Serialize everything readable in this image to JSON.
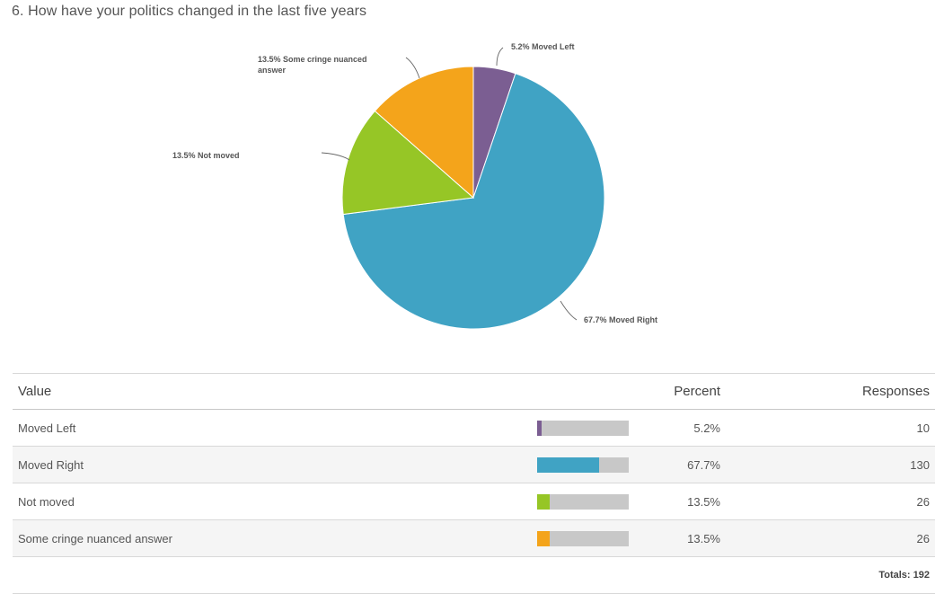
{
  "question": {
    "title": "6. How have your politics changed in the last five years"
  },
  "chart_data": {
    "type": "pie",
    "title": "6. How have your politics changed in the last five years",
    "slices": [
      {
        "label": "Moved Left",
        "percent": 5.2,
        "responses": 10,
        "color": "#7b5e92",
        "chart_label": "5.2% Moved Left"
      },
      {
        "label": "Moved Right",
        "percent": 67.7,
        "responses": 130,
        "color": "#40a3c4",
        "chart_label": "67.7% Moved Right"
      },
      {
        "label": "Not moved",
        "percent": 13.5,
        "responses": 26,
        "color": "#96c626",
        "chart_label": "13.5% Not moved"
      },
      {
        "label": "Some cringe nuanced answer",
        "percent": 13.5,
        "responses": 26,
        "color": "#f4a41b",
        "chart_label_lines": [
          "13.5% Some cringe nuanced",
          "answer"
        ]
      }
    ],
    "start": "12 o'clock",
    "direction": "clockwise"
  },
  "table": {
    "headers": {
      "value": "Value",
      "percent": "Percent",
      "responses": "Responses"
    },
    "rows": [
      {
        "value": "Moved Left",
        "percent": "5.2%",
        "responses": "10"
      },
      {
        "value": "Moved Right",
        "percent": "67.7%",
        "responses": "130"
      },
      {
        "value": "Not moved",
        "percent": "13.5%",
        "responses": "26"
      },
      {
        "value": "Some cringe nuanced answer",
        "percent": "13.5%",
        "responses": "26"
      }
    ],
    "totals": "Totals: 192"
  }
}
